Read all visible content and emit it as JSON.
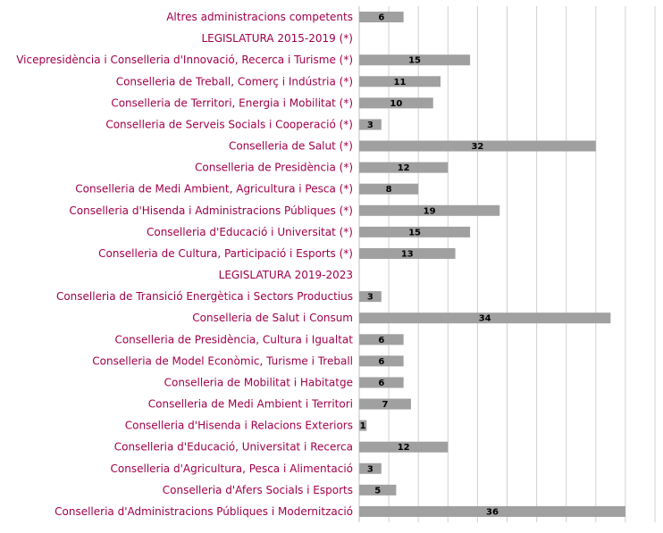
{
  "chart_data": {
    "type": "bar",
    "orientation": "horizontal",
    "categories": [
      "Altres administracions competents",
      "LEGISLATURA  2015-2019 (*)",
      "Vicepresidència i Conselleria d'Innovació, Recerca i Turisme (*)",
      "Conselleria de Treball, Comerç i Indústria (*)",
      "Conselleria de Territori, Energia i Mobilitat (*)",
      "Conselleria de Serveis Socials i Cooperació (*)",
      "Conselleria de Salut (*)",
      "Conselleria de Presidència (*)",
      "Conselleria de Medi Ambient, Agricultura i Pesca (*)",
      "Conselleria d'Hisenda i Administracions Públiques  (*)",
      "Conselleria d'Educació i Universitat (*)",
      "Conselleria de Cultura, Participació i Esports (*)",
      "LEGISLATURA  2019-2023",
      "Conselleria de Transició Energètica i Sectors Productius",
      "Conselleria de Salut i Consum",
      "Conselleria de Presidència, Cultura i Igualtat",
      "Conselleria de Model Econòmic, Turisme i Treball",
      "Conselleria de Mobilitat i Habitatge",
      "Conselleria de Medi Ambient i Territori",
      "Conselleria d'Hisenda i Relacions Exteriors",
      "Conselleria d'Educació, Universitat i Recerca",
      "Conselleria d'Agricultura, Pesca i Alimentació",
      "Conselleria d'Afers Socials i Esports",
      "Conselleria d'Administracions Públiques i Modernització"
    ],
    "values": [
      6,
      null,
      15,
      11,
      10,
      3,
      32,
      12,
      8,
      19,
      15,
      13,
      null,
      3,
      34,
      6,
      6,
      6,
      7,
      1,
      12,
      3,
      5,
      36
    ],
    "header_rows": [
      1,
      12
    ],
    "xlim": [
      0,
      40
    ],
    "x_gridline_step": 4,
    "grid": "vertical",
    "legend": "none",
    "bar_color": "#a0a0a0",
    "category_label_color": "#a0004a",
    "header_label_color": "#a0004a",
    "value_label_color": "#000000",
    "gridline_color": "#d0d0d0"
  }
}
